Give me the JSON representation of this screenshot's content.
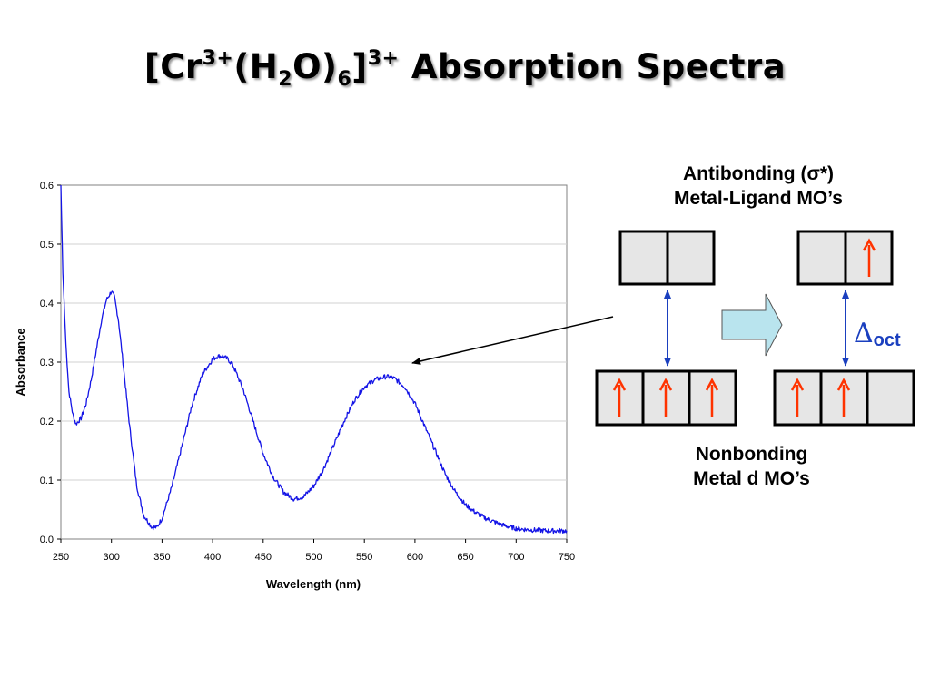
{
  "slide": {
    "title_prefix": "[Cr",
    "title_sup1": "3+",
    "title_mid1": "(H",
    "title_sub1": "2",
    "title_mid2": "O)",
    "title_sub2": "6",
    "title_mid3": "]",
    "title_sup2": "3+",
    "title_suffix": " Absorption Spectra"
  },
  "chart_data": {
    "type": "line",
    "xlabel": "Wavelength (nm)",
    "ylabel": "Absorbance",
    "xlim": [
      250,
      750
    ],
    "ylim": [
      0,
      0.6
    ],
    "x_ticks": [
      "250",
      "300",
      "350",
      "400",
      "450",
      "500",
      "550",
      "600",
      "650",
      "700",
      "750"
    ],
    "y_ticks": [
      "0.0",
      "0.1",
      "0.2",
      "0.3",
      "0.4",
      "0.5",
      "0.6"
    ],
    "grid": "horizontal",
    "series": [
      {
        "color": "#1414e6",
        "x": [
          250,
          252,
          255,
          258,
          262,
          265,
          270,
          275,
          280,
          285,
          290,
          295,
          300,
          303,
          307,
          312,
          318,
          325,
          332,
          340,
          345,
          350,
          360,
          370,
          380,
          390,
          400,
          405,
          410,
          415,
          420,
          430,
          440,
          450,
          460,
          470,
          480,
          490,
          500,
          510,
          520,
          530,
          540,
          550,
          560,
          570,
          575,
          580,
          590,
          600,
          610,
          620,
          630,
          640,
          650,
          660,
          670,
          680,
          690,
          700,
          710,
          720,
          730,
          740,
          750
        ],
        "y": [
          0.6,
          0.45,
          0.33,
          0.25,
          0.21,
          0.195,
          0.205,
          0.23,
          0.27,
          0.32,
          0.37,
          0.405,
          0.42,
          0.41,
          0.37,
          0.29,
          0.19,
          0.09,
          0.04,
          0.02,
          0.02,
          0.035,
          0.09,
          0.16,
          0.23,
          0.28,
          0.305,
          0.31,
          0.31,
          0.305,
          0.295,
          0.255,
          0.2,
          0.145,
          0.105,
          0.08,
          0.068,
          0.072,
          0.09,
          0.12,
          0.16,
          0.2,
          0.235,
          0.258,
          0.27,
          0.275,
          0.275,
          0.272,
          0.258,
          0.23,
          0.19,
          0.15,
          0.11,
          0.08,
          0.058,
          0.045,
          0.035,
          0.028,
          0.022,
          0.018,
          0.016,
          0.015,
          0.014,
          0.014,
          0.014
        ]
      }
    ]
  },
  "diagram": {
    "top_label": "Antibonding (σ*)\nMetal-Ligand MO’s",
    "bottom_label": "Nonbonding\nMetal d MO’s",
    "delta_symbol": "Δ",
    "delta_subscript": "oct",
    "box_fill": "#e6e6e6",
    "electron_color": "#ff3300",
    "transition_arrow_color": "#1a3fbf",
    "big_arrow_fill": "#b9e4ee"
  }
}
